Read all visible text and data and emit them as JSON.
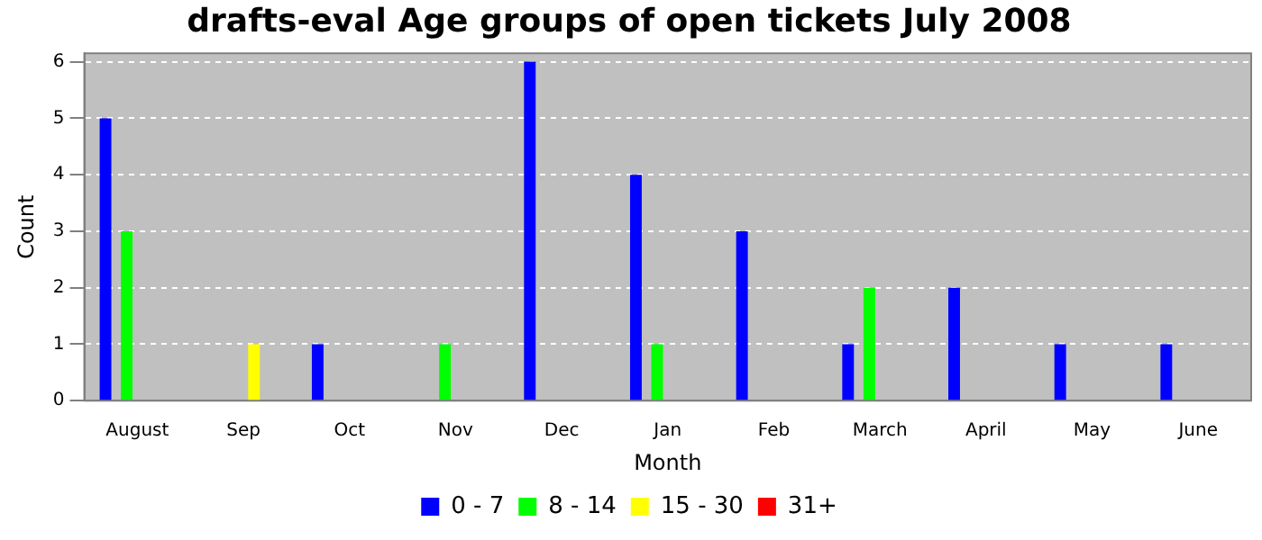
{
  "chart_data": {
    "type": "bar",
    "title": "drafts-eval Age groups of open tickets July 2008",
    "xlabel": "Month",
    "ylabel": "Count",
    "categories": [
      "August",
      "Sep",
      "Oct",
      "Nov",
      "Dec",
      "Jan",
      "Feb",
      "March",
      "April",
      "May",
      "June"
    ],
    "series": [
      {
        "name": "0 - 7",
        "color": "#0000ff",
        "values": [
          5,
          0,
          1,
          0,
          6,
          4,
          3,
          1,
          2,
          1,
          1
        ]
      },
      {
        "name": "8 - 14",
        "color": "#00ff00",
        "values": [
          3,
          0,
          0,
          1,
          0,
          1,
          0,
          2,
          0,
          0,
          0
        ]
      },
      {
        "name": "15 - 30",
        "color": "#ffff00",
        "values": [
          0,
          1,
          0,
          0,
          0,
          0,
          0,
          0,
          0,
          0,
          0
        ]
      },
      {
        "name": "31+",
        "color": "#ff0000",
        "values": [
          0,
          0,
          0,
          0,
          0,
          0,
          0,
          0,
          0,
          0,
          0
        ]
      }
    ],
    "ylim": [
      0,
      6.15
    ],
    "yticks": [
      0,
      1,
      2,
      3,
      4,
      5,
      6
    ],
    "grid": "y",
    "legend": "bottom"
  }
}
